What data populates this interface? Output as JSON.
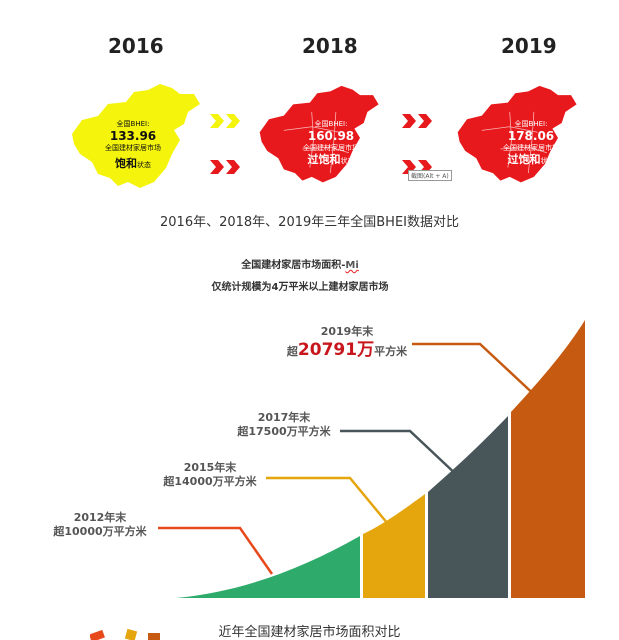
{
  "maps": [
    {
      "year": "2016",
      "label": "全国BHEI:",
      "value": "133.96",
      "market": "全国建材家居市场",
      "status_main": "饱和",
      "status_suffix": "状态",
      "color": "#f4f40c"
    },
    {
      "year": "2018",
      "label": "全国BHEI:",
      "value": "160.98",
      "market": "全国建材家居市场",
      "status_main": "过饱和",
      "status_suffix": "状态",
      "color": "#e8191c"
    },
    {
      "year": "2019",
      "label": "全国BHEI:",
      "value": "178.06",
      "market": "全国建材家居市场",
      "status_main": "过饱和",
      "status_suffix": "状态",
      "color": "#e8191c"
    }
  ],
  "arrow_color": "#e8191c",
  "tooltip": "截图(Alt + A)",
  "caption1": "2016年、2018年、2019年三年全国BHEI数据对比",
  "chart": {
    "title_line1_prefix": "全国建材家居市场面积-",
    "title_line1_brand": "Mi",
    "title_line2": "仅统计规模为4万平米以上建材家居市场",
    "labels": [
      {
        "year": "2012年末",
        "text": "超10000万平方米",
        "color": "#e8491c"
      },
      {
        "year": "2015年末",
        "text": "超14000万平方米",
        "color": "#e5a50d"
      },
      {
        "year": "2017年末",
        "text": "超17500万平方米",
        "color": "#48565a"
      },
      {
        "year": "2019年末",
        "prefix": "超",
        "value": "20791万",
        "unit": "平方米",
        "color": "#c65a11"
      }
    ],
    "segment_colors": [
      "#2eaa6a",
      "#e5a50d",
      "#48565a",
      "#c65a11"
    ]
  },
  "caption2": "近年全国建材家居市场面积对比"
}
